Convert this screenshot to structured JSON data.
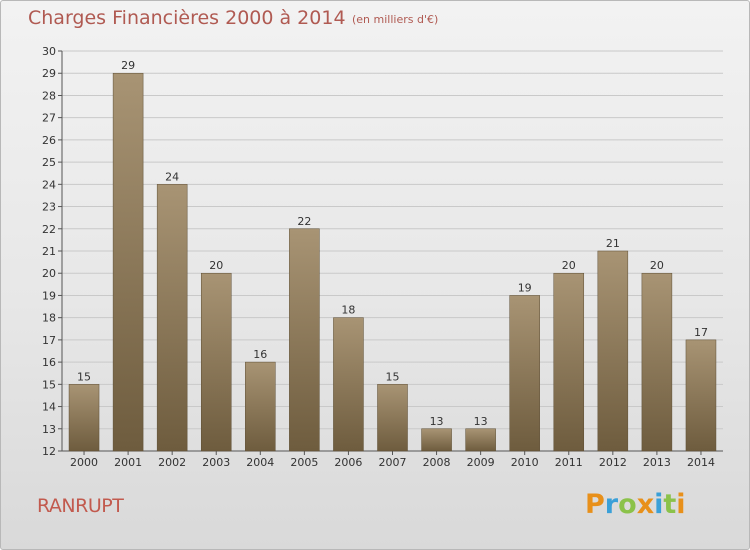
{
  "header": {
    "title": "Charges Financières 2000 à 2014",
    "subtitle": "(en milliers d'€)"
  },
  "footer": {
    "commune": "RANRUPT",
    "logo_letters": [
      "P",
      "r",
      "o",
      "x",
      "i",
      "t",
      "i"
    ],
    "logo_colors": [
      "#e8901a",
      "#3aa0d8",
      "#8bc24a",
      "#e8901a",
      "#3aa0d8",
      "#8bc24a",
      "#e8901a"
    ]
  },
  "colors": {
    "bar_light": "#a89474",
    "bar_dark": "#6e5c3e",
    "grid": "#c9c9c9",
    "axis": "#555555"
  },
  "chart_data": {
    "type": "bar",
    "title": "Charges Financières 2000 à 2014",
    "subtitle": "(en milliers d'€)",
    "xlabel": "",
    "ylabel": "",
    "categories": [
      "2000",
      "2001",
      "2002",
      "2003",
      "2004",
      "2005",
      "2006",
      "2007",
      "2008",
      "2009",
      "2010",
      "2011",
      "2012",
      "2013",
      "2014"
    ],
    "values": [
      15,
      29,
      24,
      20,
      16,
      22,
      18,
      15,
      13,
      13,
      19,
      20,
      21,
      20,
      17
    ],
    "ylim": [
      12,
      30
    ],
    "yticks": [
      12,
      13,
      14,
      15,
      16,
      17,
      18,
      19,
      20,
      21,
      22,
      23,
      24,
      25,
      26,
      27,
      28,
      29,
      30
    ],
    "grid": true,
    "data_labels": true
  }
}
